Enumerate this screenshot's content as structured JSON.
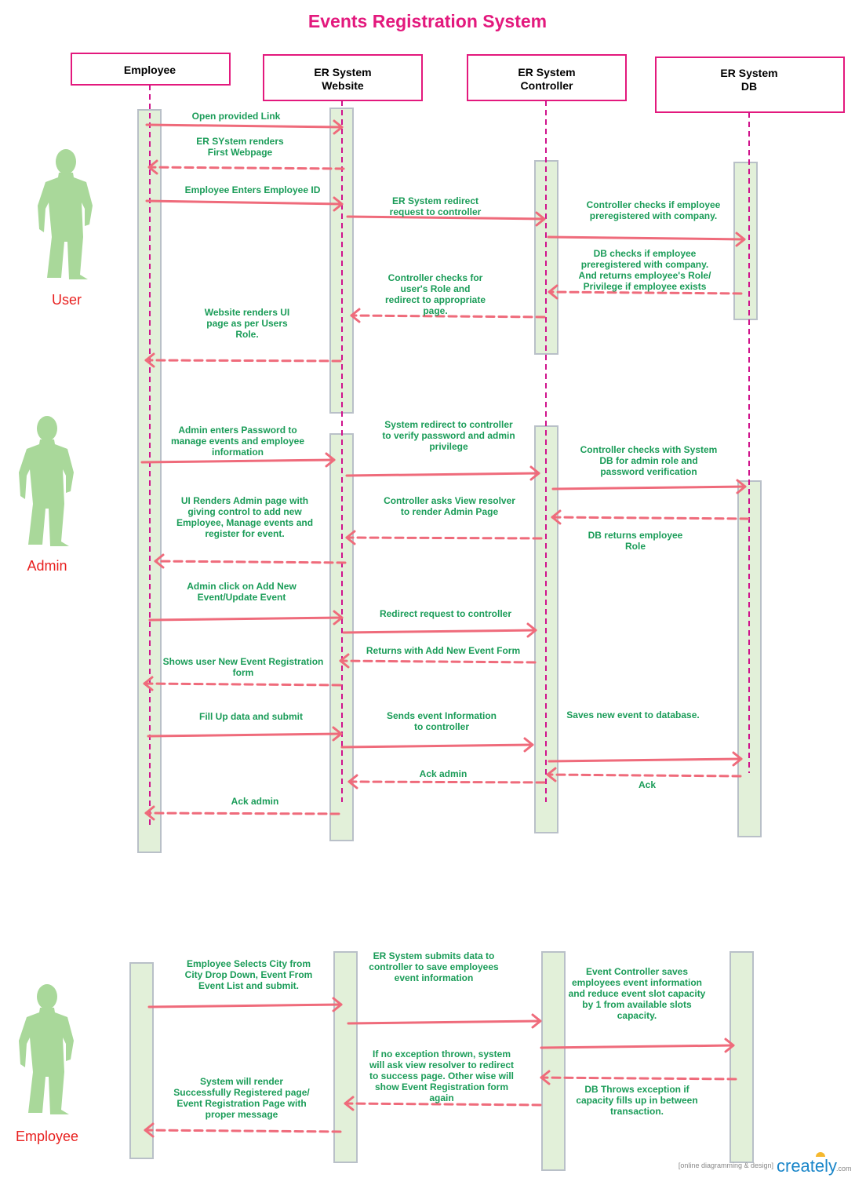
{
  "title": "Events Registration System",
  "colors": {
    "title": "#e3197d",
    "participant_border": "#e3197d",
    "lifeline": "#d0138c",
    "activation_fill": "#e2f0d9",
    "activation_stroke": "#b9c0c8",
    "arrow": "#ef6b7b",
    "message_text": "#1a9c58",
    "actor_figure": "#a9d89a",
    "actor_label": "#e8201f"
  },
  "participants": [
    {
      "id": "employee",
      "lines": [
        "Employee"
      ]
    },
    {
      "id": "website",
      "lines": [
        "ER System",
        "Website"
      ]
    },
    {
      "id": "controller",
      "lines": [
        "ER System",
        "Controller"
      ]
    },
    {
      "id": "db",
      "lines": [
        "ER System",
        "DB"
      ]
    }
  ],
  "actors": [
    {
      "id": "user",
      "label": "User",
      "icon": "person-silhouette-icon"
    },
    {
      "id": "admin",
      "label": "Admin",
      "icon": "person-silhouette-icon"
    },
    {
      "id": "employee",
      "label": "Employee",
      "icon": "person-silhouette-icon"
    }
  ],
  "messages": [
    {
      "text": [
        "Open provided Link"
      ],
      "kind": "request",
      "from": "employee",
      "to": "website"
    },
    {
      "text": [
        "ER SYstem renders",
        "First Webpage"
      ],
      "kind": "reply",
      "from": "website",
      "to": "employee"
    },
    {
      "text": [
        "Employee Enters Employee ID"
      ],
      "kind": "request",
      "from": "employee",
      "to": "website"
    },
    {
      "text": [
        "ER System redirect",
        "request to controller"
      ],
      "kind": "request",
      "from": "website",
      "to": "controller"
    },
    {
      "text": [
        "Controller checks if employee",
        "preregistered with company."
      ],
      "kind": "request",
      "from": "controller",
      "to": "db"
    },
    {
      "text": [
        "DB checks if employee",
        "preregistered with company.",
        "And returns employee's Role/",
        "Privilege if employee exists"
      ],
      "kind": "reply",
      "from": "db",
      "to": "controller"
    },
    {
      "text": [
        "Controller checks for",
        "user's Role and",
        "redirect to appropriate",
        "page."
      ],
      "kind": "reply",
      "from": "controller",
      "to": "website"
    },
    {
      "text": [
        "Website renders UI",
        "page as per Users",
        "Role."
      ],
      "kind": "reply",
      "from": "website",
      "to": "employee"
    },
    {
      "text": [
        "Admin enters Password to",
        "manage events and employee",
        "information"
      ],
      "kind": "request",
      "from": "employee",
      "to": "website"
    },
    {
      "text": [
        "System redirect to controller",
        "to verify password and admin",
        "privilege"
      ],
      "kind": "request",
      "from": "website",
      "to": "controller"
    },
    {
      "text": [
        "Controller checks with System",
        "DB for admin role and",
        "password verification"
      ],
      "kind": "request",
      "from": "controller",
      "to": "db"
    },
    {
      "text": [
        "DB returns employee",
        "Role"
      ],
      "kind": "reply",
      "from": "db",
      "to": "controller"
    },
    {
      "text": [
        "Controller asks View resolver",
        "to render Admin Page"
      ],
      "kind": "reply",
      "from": "controller",
      "to": "website"
    },
    {
      "text": [
        "UI Renders Admin page with",
        "giving control to add new",
        "Employee, Manage events and",
        "register for event."
      ],
      "kind": "reply",
      "from": "website",
      "to": "employee"
    },
    {
      "text": [
        "Admin click on Add New",
        "Event/Update Event"
      ],
      "kind": "request",
      "from": "employee",
      "to": "website"
    },
    {
      "text": [
        "Redirect request to controller"
      ],
      "kind": "request",
      "from": "website",
      "to": "controller"
    },
    {
      "text": [
        "Returns with Add New Event Form"
      ],
      "kind": "reply",
      "from": "controller",
      "to": "website"
    },
    {
      "text": [
        "Shows user New Event Registration",
        "form"
      ],
      "kind": "reply",
      "from": "website",
      "to": "employee"
    },
    {
      "text": [
        "Fill Up data and submit"
      ],
      "kind": "request",
      "from": "employee",
      "to": "website"
    },
    {
      "text": [
        "Sends event Information",
        "to controller"
      ],
      "kind": "request",
      "from": "website",
      "to": "controller"
    },
    {
      "text": [
        "Saves new event to database."
      ],
      "kind": "request",
      "from": "controller",
      "to": "db"
    },
    {
      "text": [
        "Ack"
      ],
      "kind": "reply",
      "from": "db",
      "to": "controller"
    },
    {
      "text": [
        "Ack admin"
      ],
      "kind": "reply",
      "from": "controller",
      "to": "website"
    },
    {
      "text": [
        "Ack admin"
      ],
      "kind": "reply",
      "from": "website",
      "to": "employee"
    },
    {
      "text": [
        "Employee  Selects City from",
        "City Drop Down, Event From",
        "Event List and submit."
      ],
      "kind": "request",
      "from": "employee",
      "to": "website"
    },
    {
      "text": [
        "ER System submits data to",
        "controller to save employees",
        "event information"
      ],
      "kind": "request",
      "from": "website",
      "to": "controller"
    },
    {
      "text": [
        "Event Controller saves",
        "employees event information",
        "and reduce event slot capacity",
        "by 1 from available slots",
        "capacity."
      ],
      "kind": "request",
      "from": "controller",
      "to": "db"
    },
    {
      "text": [
        "DB Throws exception if",
        "capacity fills up in between",
        "transaction."
      ],
      "kind": "reply",
      "from": "db",
      "to": "controller"
    },
    {
      "text": [
        "If no exception thrown, system",
        "will ask view resolver to redirect",
        "to success page. Other wise will",
        "show Event Registration form",
        "again"
      ],
      "kind": "reply",
      "from": "controller",
      "to": "website"
    },
    {
      "text": [
        "System will render",
        "Successfully Registered page/",
        "Event Registration Page with",
        "proper message"
      ],
      "kind": "reply",
      "from": "website",
      "to": "employee"
    }
  ],
  "watermark": {
    "tagline": "[online diagramming & design]",
    "brand": "creately",
    "suffix": ".com"
  }
}
